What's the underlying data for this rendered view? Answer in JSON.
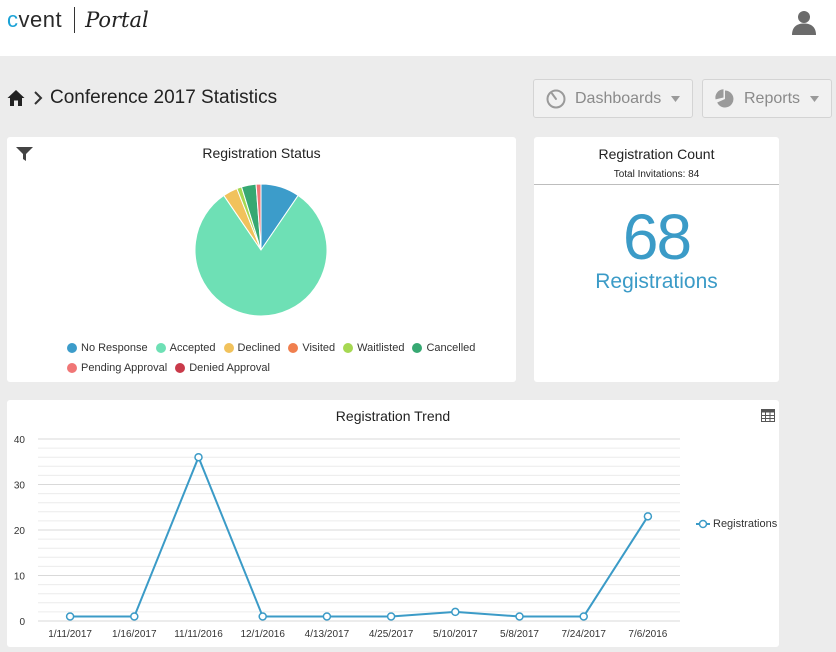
{
  "header": {
    "logo_cvent_prefix": "c",
    "logo_cvent_rest": "vent",
    "logo_portal": "Portal",
    "user_icon": "user-icon"
  },
  "breadcrumb": {
    "home_icon": "home-icon",
    "title": "Conference 2017 Statistics"
  },
  "toolbar": {
    "dashboards_label": "Dashboards",
    "dashboards_icon": "gauge-icon",
    "reports_label": "Reports",
    "reports_icon": "pie-chart-icon"
  },
  "colors": {
    "accent": "#3b9bc7",
    "no_response": "#3c9cca",
    "accepted": "#6ee0b5",
    "declined": "#f1c25c",
    "visited": "#f07f4e",
    "waitlisted": "#a6d852",
    "cancelled": "#36a872",
    "pending_approval": "#f07676",
    "denied_approval": "#c93a4a"
  },
  "status_card": {
    "title": "Registration Status",
    "filter_icon": "filter-icon"
  },
  "count_card": {
    "title": "Registration Count",
    "subtitle": "Total Invitations: 84",
    "value": "68",
    "label": "Registrations"
  },
  "trend_card": {
    "title": "Registration Trend",
    "table_icon": "table-view-icon",
    "legend_label": "Registrations"
  },
  "chart_data": [
    {
      "type": "pie",
      "title": "Registration Status",
      "categories": [
        "No Response",
        "Accepted",
        "Declined",
        "Visited",
        "Waitlisted",
        "Cancelled",
        "Pending Approval",
        "Denied Approval"
      ],
      "values": [
        8,
        68,
        3,
        0,
        1,
        3,
        1,
        0
      ],
      "legend": "bottom"
    },
    {
      "type": "line",
      "title": "Registration Trend",
      "categories": [
        "1/11/2017",
        "1/16/2017",
        "11/11/2016",
        "12/1/2016",
        "4/13/2017",
        "4/25/2017",
        "5/10/2017",
        "5/8/2017",
        "7/24/2017",
        "7/6/2016"
      ],
      "series": [
        {
          "name": "Registrations",
          "values": [
            1,
            1,
            36,
            1,
            1,
            1,
            2,
            1,
            1,
            23
          ]
        }
      ],
      "ylim": [
        0,
        40
      ],
      "yticks": [
        0,
        10,
        20,
        30,
        40
      ],
      "grid": true,
      "legend": "right"
    }
  ]
}
